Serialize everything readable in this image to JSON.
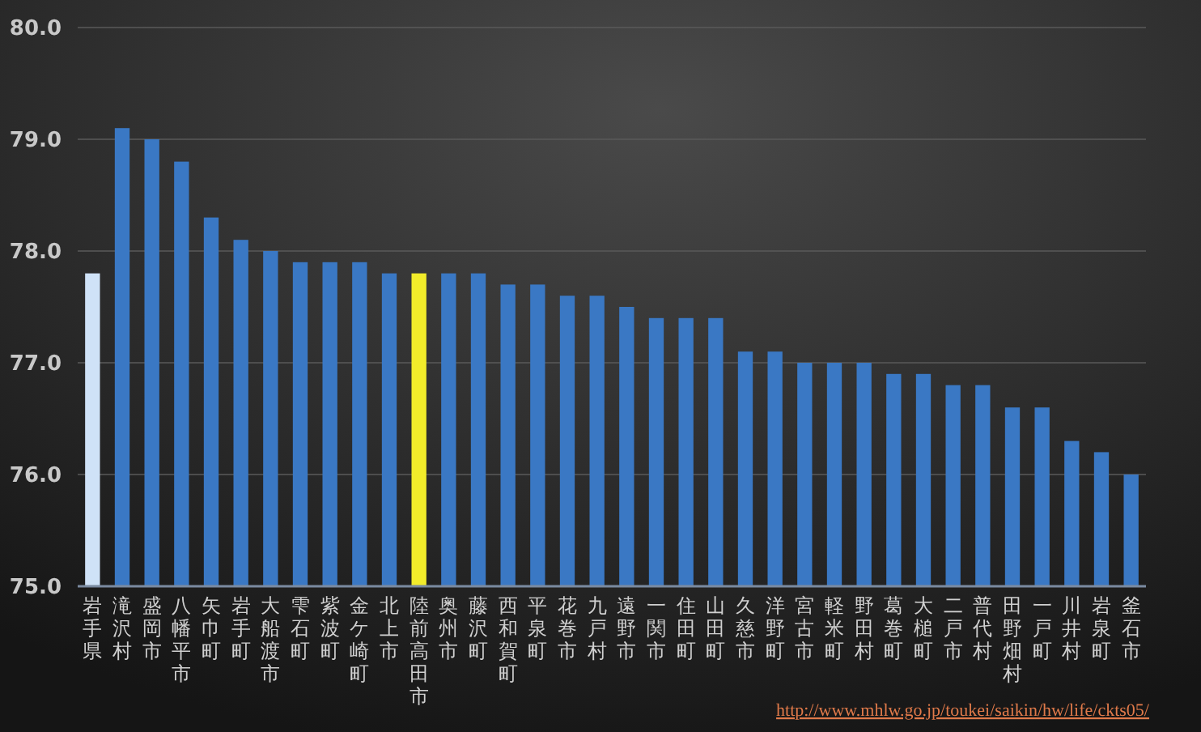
{
  "chart_data": {
    "type": "bar",
    "categories": [
      "岩手県",
      "滝沢村",
      "盛岡市",
      "八幡平市",
      "矢巾町",
      "岩手町",
      "大船渡市",
      "雫石町",
      "紫波町",
      "金ケ崎町",
      "北上市",
      "陸前高田市",
      "奥州市",
      "藤沢町",
      "西和賀町",
      "平泉町",
      "花巻市",
      "九戸村",
      "遠野市",
      "一関市",
      "住田町",
      "山田町",
      "久慈市",
      "洋野町",
      "宮古市",
      "軽米町",
      "野田村",
      "葛巻町",
      "大槌町",
      "二戸市",
      "普代村",
      "田野畑村",
      "一戸町",
      "川井村",
      "岩泉町",
      "釜石市"
    ],
    "values": [
      77.8,
      79.1,
      79.0,
      78.8,
      78.3,
      78.1,
      78.0,
      77.9,
      77.9,
      77.9,
      77.8,
      77.8,
      77.8,
      77.8,
      77.7,
      77.7,
      77.6,
      77.6,
      77.5,
      77.4,
      77.4,
      77.4,
      77.1,
      77.1,
      77.0,
      77.0,
      77.0,
      76.9,
      76.9,
      76.8,
      76.8,
      76.6,
      76.6,
      76.3,
      76.2,
      76.0
    ],
    "colors": [
      "#cfe2f7",
      "#3a78c4",
      "#3a78c4",
      "#3a78c4",
      "#3a78c4",
      "#3a78c4",
      "#3a78c4",
      "#3a78c4",
      "#3a78c4",
      "#3a78c4",
      "#3a78c4",
      "#f2ec2a",
      "#3a78c4",
      "#3a78c4",
      "#3a78c4",
      "#3a78c4",
      "#3a78c4",
      "#3a78c4",
      "#3a78c4",
      "#3a78c4",
      "#3a78c4",
      "#3a78c4",
      "#3a78c4",
      "#3a78c4",
      "#3a78c4",
      "#3a78c4",
      "#3a78c4",
      "#3a78c4",
      "#3a78c4",
      "#3a78c4",
      "#3a78c4",
      "#3a78c4",
      "#3a78c4",
      "#3a78c4",
      "#3a78c4",
      "#3a78c4"
    ],
    "ylim": [
      75,
      80
    ],
    "yticks": [
      {
        "value": 75,
        "label": "75.0"
      },
      {
        "value": 76,
        "label": "76.0"
      },
      {
        "value": 77,
        "label": "77.0"
      },
      {
        "value": 78,
        "label": "78.0"
      },
      {
        "value": 79,
        "label": "79.0"
      },
      {
        "value": 80,
        "label": "80.0"
      }
    ],
    "grid": "y",
    "annotations": [
      "http://www.mhlw.go.jp/toukei/saikin/hw/life/ckts05/"
    ]
  }
}
